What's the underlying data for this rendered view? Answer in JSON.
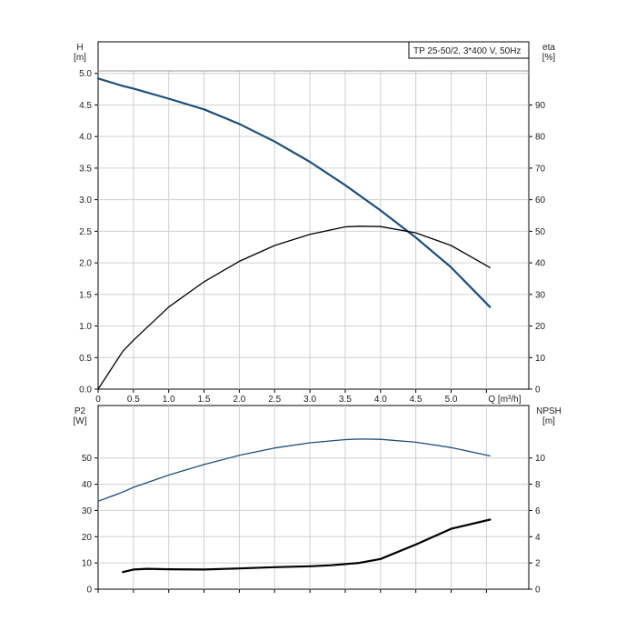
{
  "title_box": "TP 25-50/2, 3*400 V, 50Hz",
  "chart_data": [
    {
      "type": "line",
      "panel": "top",
      "ylabel_left": "H",
      "ylabel_left_unit": "[m]",
      "ylabel_right": "eta",
      "ylabel_right_unit": "[%]",
      "xlabel": "Q [m³/h]",
      "xlim": [
        0,
        6.1
      ],
      "ylim_left": [
        0,
        5.5
      ],
      "ylim_right": [
        0,
        110
      ],
      "x_ticks": [
        0,
        0.5,
        1.0,
        1.5,
        2.0,
        2.5,
        3.0,
        3.5,
        4.0,
        4.5,
        5.0
      ],
      "x_tick_labels": [
        "0",
        "0.5",
        "1.0",
        "1.5",
        "2.0",
        "2.5",
        "3.0",
        "3.5",
        "4.0",
        "4.5",
        "5.0"
      ],
      "y_left_ticks": [
        0,
        0.5,
        1.0,
        1.5,
        2.0,
        2.5,
        3.0,
        3.5,
        4.0,
        4.5,
        5.0
      ],
      "y_left_tick_labels": [
        "0.0",
        "0.5",
        "1.0",
        "1.5",
        "2.0",
        "2.5",
        "3.0",
        "3.5",
        "4.0",
        "4.5",
        "5.0"
      ],
      "y_right_ticks": [
        0,
        10,
        20,
        30,
        40,
        50,
        60,
        70,
        80,
        90
      ],
      "y_right_tick_labels": [
        "0",
        "10",
        "20",
        "30",
        "40",
        "50",
        "60",
        "70",
        "80",
        "90"
      ],
      "grid": true,
      "series": [
        {
          "axis": "left",
          "color": "#1f4e79",
          "x": [
            0,
            0.35,
            0.5,
            1.0,
            1.5,
            2.0,
            2.5,
            3.0,
            3.5,
            4.0,
            4.5,
            5.0,
            5.55
          ],
          "y": [
            4.92,
            4.8,
            4.76,
            4.6,
            4.43,
            4.2,
            3.92,
            3.6,
            3.23,
            2.83,
            2.4,
            1.93,
            1.3
          ]
        },
        {
          "axis": "right",
          "color": "#000000",
          "x": [
            0,
            0.35,
            0.5,
            1.0,
            1.5,
            2.0,
            2.5,
            3.0,
            3.5,
            3.7,
            4.0,
            4.5,
            5.0,
            5.55
          ],
          "y": [
            0,
            12,
            15.5,
            26,
            34,
            40.5,
            45.5,
            49,
            51.4,
            51.6,
            51.5,
            49.5,
            45.5,
            38.5
          ]
        }
      ]
    },
    {
      "type": "line",
      "panel": "bottom",
      "ylabel_left": "P2",
      "ylabel_left_unit": "[W]",
      "ylabel_right": "NPSH",
      "ylabel_right_unit": "[m]",
      "xlim": [
        0,
        6.1
      ],
      "ylim_left": [
        0,
        70
      ],
      "ylim_right": [
        0,
        14
      ],
      "y_left_ticks": [
        0,
        10,
        20,
        30,
        40,
        50
      ],
      "y_left_tick_labels": [
        "0",
        "10",
        "20",
        "30",
        "40",
        "50"
      ],
      "y_right_ticks": [
        0,
        2,
        4,
        6,
        8,
        10
      ],
      "y_right_tick_labels": [
        "0",
        "2",
        "4",
        "6",
        "8",
        "10"
      ],
      "grid": true,
      "series": [
        {
          "axis": "left",
          "color": "#1f4e79",
          "x": [
            0,
            0.35,
            0.5,
            1.0,
            1.5,
            2.0,
            2.5,
            3.0,
            3.5,
            3.7,
            4.0,
            4.5,
            5.0,
            5.55
          ],
          "y": [
            33.5,
            37,
            38.8,
            43.5,
            47.5,
            51,
            53.8,
            55.8,
            57,
            57.2,
            57.1,
            56,
            54,
            50.8
          ]
        },
        {
          "axis": "right",
          "color": "#000000",
          "x": [
            0.35,
            0.5,
            0.7,
            1.0,
            1.5,
            2.0,
            2.5,
            3.0,
            3.3,
            3.7,
            4.0,
            4.5,
            5.0,
            5.55
          ],
          "y": [
            1.3,
            1.5,
            1.55,
            1.52,
            1.5,
            1.58,
            1.68,
            1.75,
            1.82,
            2.0,
            2.3,
            3.4,
            4.6,
            5.3
          ]
        }
      ]
    }
  ]
}
